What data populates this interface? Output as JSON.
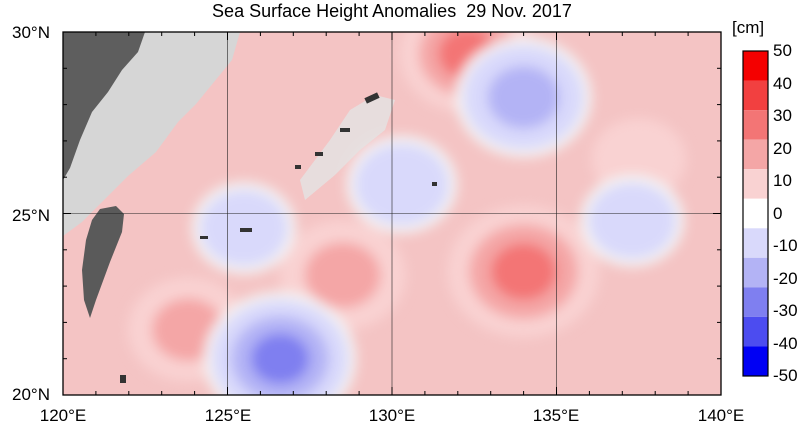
{
  "title": "Sea Surface Height Anomalies  29 Nov. 2017",
  "map": {
    "lon_range": [
      120,
      140
    ],
    "lat_range": [
      20,
      30
    ],
    "lat_ticks": [
      "30°N",
      "25°N",
      "20°N"
    ],
    "lon_ticks": [
      "120°E",
      "125°E",
      "130°E",
      "135°E",
      "140°E"
    ],
    "grid_lines": true,
    "land_color": "#d6d6d6",
    "coast_color": "#555555",
    "ocean_base_color": "#f4c4c4"
  },
  "colorbar": {
    "unit": "[cm]",
    "labels": [
      "50",
      "40",
      "30",
      "20",
      "10",
      "0",
      "-10",
      "-20",
      "-30",
      "-40",
      "-50"
    ],
    "colors": [
      "#f40000",
      "#f24040",
      "#f37575",
      "#f4a6a6",
      "#f9d2d2",
      "#ffffff",
      "#d9d9fb",
      "#b3b3f5",
      "#7f7ff0",
      "#4c4cf0",
      "#0000f4"
    ],
    "anomaly_features": [
      {
        "lon": 134.0,
        "lat": 23.4,
        "value": 30
      },
      {
        "lon": 128.5,
        "lat": 23.3,
        "value": 22
      },
      {
        "lon": 123.8,
        "lat": 21.8,
        "value": 20
      },
      {
        "lon": 132.3,
        "lat": 29.4,
        "value": 25
      },
      {
        "lon": 137.5,
        "lat": 26.5,
        "value": 12
      },
      {
        "lon": 134.0,
        "lat": 28.2,
        "value": -20
      },
      {
        "lon": 137.3,
        "lat": 24.8,
        "value": -10
      },
      {
        "lon": 126.6,
        "lat": 21.0,
        "value": -25
      },
      {
        "lon": 130.3,
        "lat": 25.8,
        "value": -12
      },
      {
        "lon": 125.5,
        "lat": 24.6,
        "value": -10
      }
    ]
  }
}
